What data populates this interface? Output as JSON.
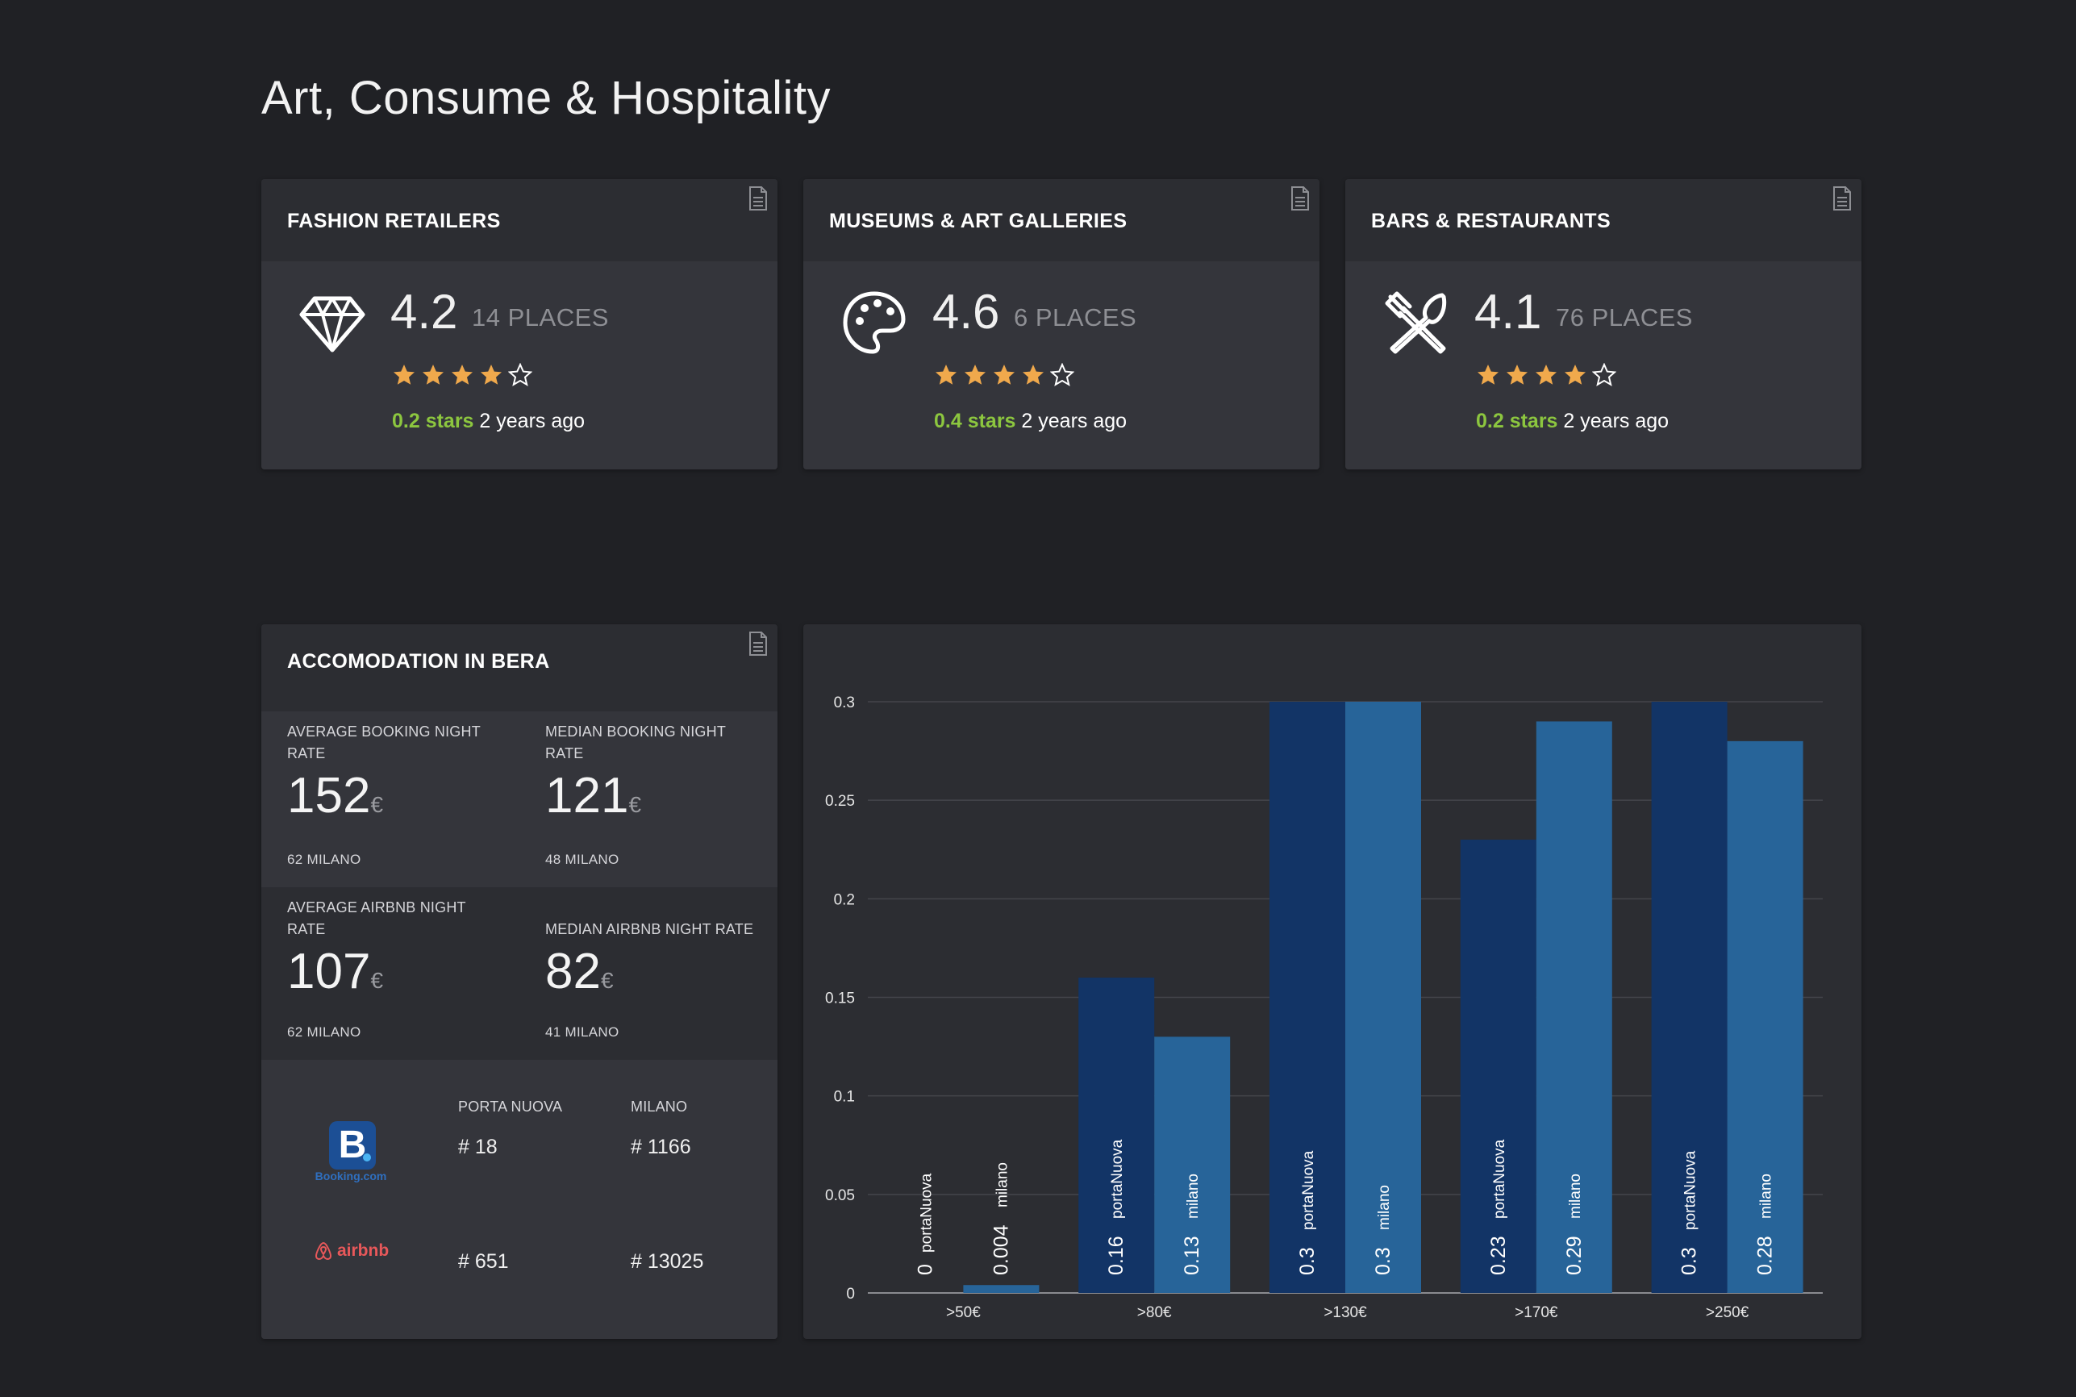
{
  "page_title": "Art, Consume & Hospitality",
  "rating_cards": [
    {
      "title": "FASHION RETAILERS",
      "rating": "4.2",
      "places": "14 PLACES",
      "stars": 4,
      "delta_stars": "0.2 stars",
      "delta_time": "2 years ago",
      "icon": "diamond-icon"
    },
    {
      "title": "MUSEUMS & ART GALLERIES",
      "rating": "4.6",
      "places": "6 PLACES",
      "stars": 4,
      "delta_stars": "0.4 stars",
      "delta_time": "2 years ago",
      "icon": "palette-icon"
    },
    {
      "title": "BARS & RESTAURANTS",
      "rating": "4.1",
      "places": "76 PLACES",
      "stars": 4,
      "delta_stars": "0.2 stars",
      "delta_time": "2 years ago",
      "icon": "utensils-icon"
    }
  ],
  "accommodation": {
    "title": "ACCOMODATION IN BERA",
    "avg_booking": {
      "label_1": "AVERAGE BOOKING NIGHT",
      "label_2": "RATE",
      "value": "152",
      "unit": "€",
      "sub": "62 MILANO"
    },
    "median_booking": {
      "label_1": "MEDIAN BOOKING NIGHT",
      "label_2": "RATE",
      "value": "121",
      "unit": "€",
      "sub": "48 MILANO"
    },
    "avg_airbnb": {
      "label_1": "AVERAGE AIRBNB NIGHT",
      "label_2": "RATE",
      "value": "107",
      "unit": "€",
      "sub": "62 MILANO"
    },
    "median_airbnb": {
      "label_1": "MEDIAN AIRBNB NIGHT RATE",
      "value": "82",
      "unit": "€",
      "sub": "41 MILANO"
    },
    "platforms": {
      "col_1": "PORTA NUOVA",
      "col_2": "MILANO",
      "booking": {
        "logo_letter": "B",
        "logo_text": "Booking.com",
        "porta_nuova": "# 18",
        "milano": "# 1166"
      },
      "airbnb": {
        "logo_text": "airbnb",
        "porta_nuova": "# 651",
        "milano": "# 13025"
      }
    }
  },
  "chart_data": {
    "type": "bar",
    "categories": [
      ">50€",
      ">80€",
      ">130€",
      ">170€",
      ">250€"
    ],
    "series": [
      {
        "name": "portaNuova",
        "values": [
          0,
          0.16,
          0.3,
          0.23,
          0.3
        ],
        "labels": [
          "0",
          "0.16",
          "0.3",
          "0.23",
          "0.3"
        ],
        "color": "#123466"
      },
      {
        "name": "milano",
        "values": [
          0.004,
          0.13,
          0.3,
          0.29,
          0.28
        ],
        "labels": [
          "0.004",
          "0.13",
          "0.3",
          "0.29",
          "0.28"
        ],
        "color": "#276499"
      }
    ],
    "ylim": [
      0,
      0.3
    ],
    "yticks": [
      "0",
      "0.05",
      "0.1",
      "0.15",
      "0.2",
      "0.25",
      "0.3"
    ],
    "grid": true,
    "legend": "none"
  },
  "colors": {
    "background": "#202125",
    "card": "#2c2d32",
    "card_body": "#34353b",
    "star": "#f0a94c",
    "delta": "#8cc63f"
  }
}
